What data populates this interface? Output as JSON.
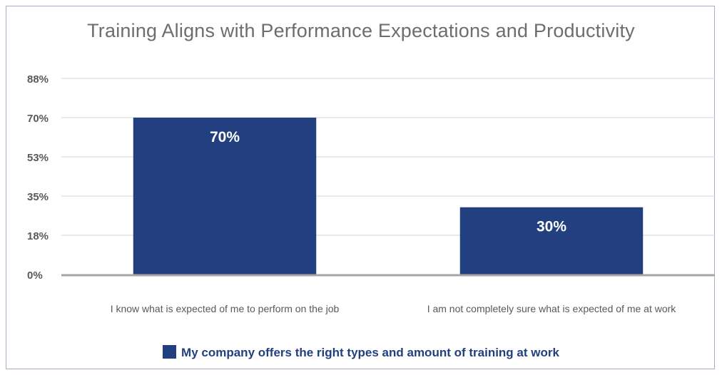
{
  "chart_data": {
    "type": "bar",
    "title": "Training Aligns with Performance Expectations and Productivity",
    "categories": [
      "I know what is expected of me to perform on the job",
      "I am not completely sure what is expected of me at work"
    ],
    "series": [
      {
        "name": "My company offers the right types and amount of training at work",
        "values": [
          70,
          30
        ],
        "data_labels": [
          "70%",
          "30%"
        ],
        "color": "#22407f"
      }
    ],
    "yticks": [
      0,
      17.5,
      35,
      52.5,
      70,
      87.5
    ],
    "ytick_labels": [
      "0%",
      "18%",
      "35%",
      "53%",
      "70%",
      "88%"
    ],
    "ylim": [
      0,
      87.5
    ],
    "grid": true,
    "legend_position": "bottom",
    "colors": {
      "bar": "#22407f",
      "grid": "#d4d4d4",
      "axis": "#a6a6a6",
      "title": "#6d6d6d",
      "tick": "#595959"
    }
  }
}
